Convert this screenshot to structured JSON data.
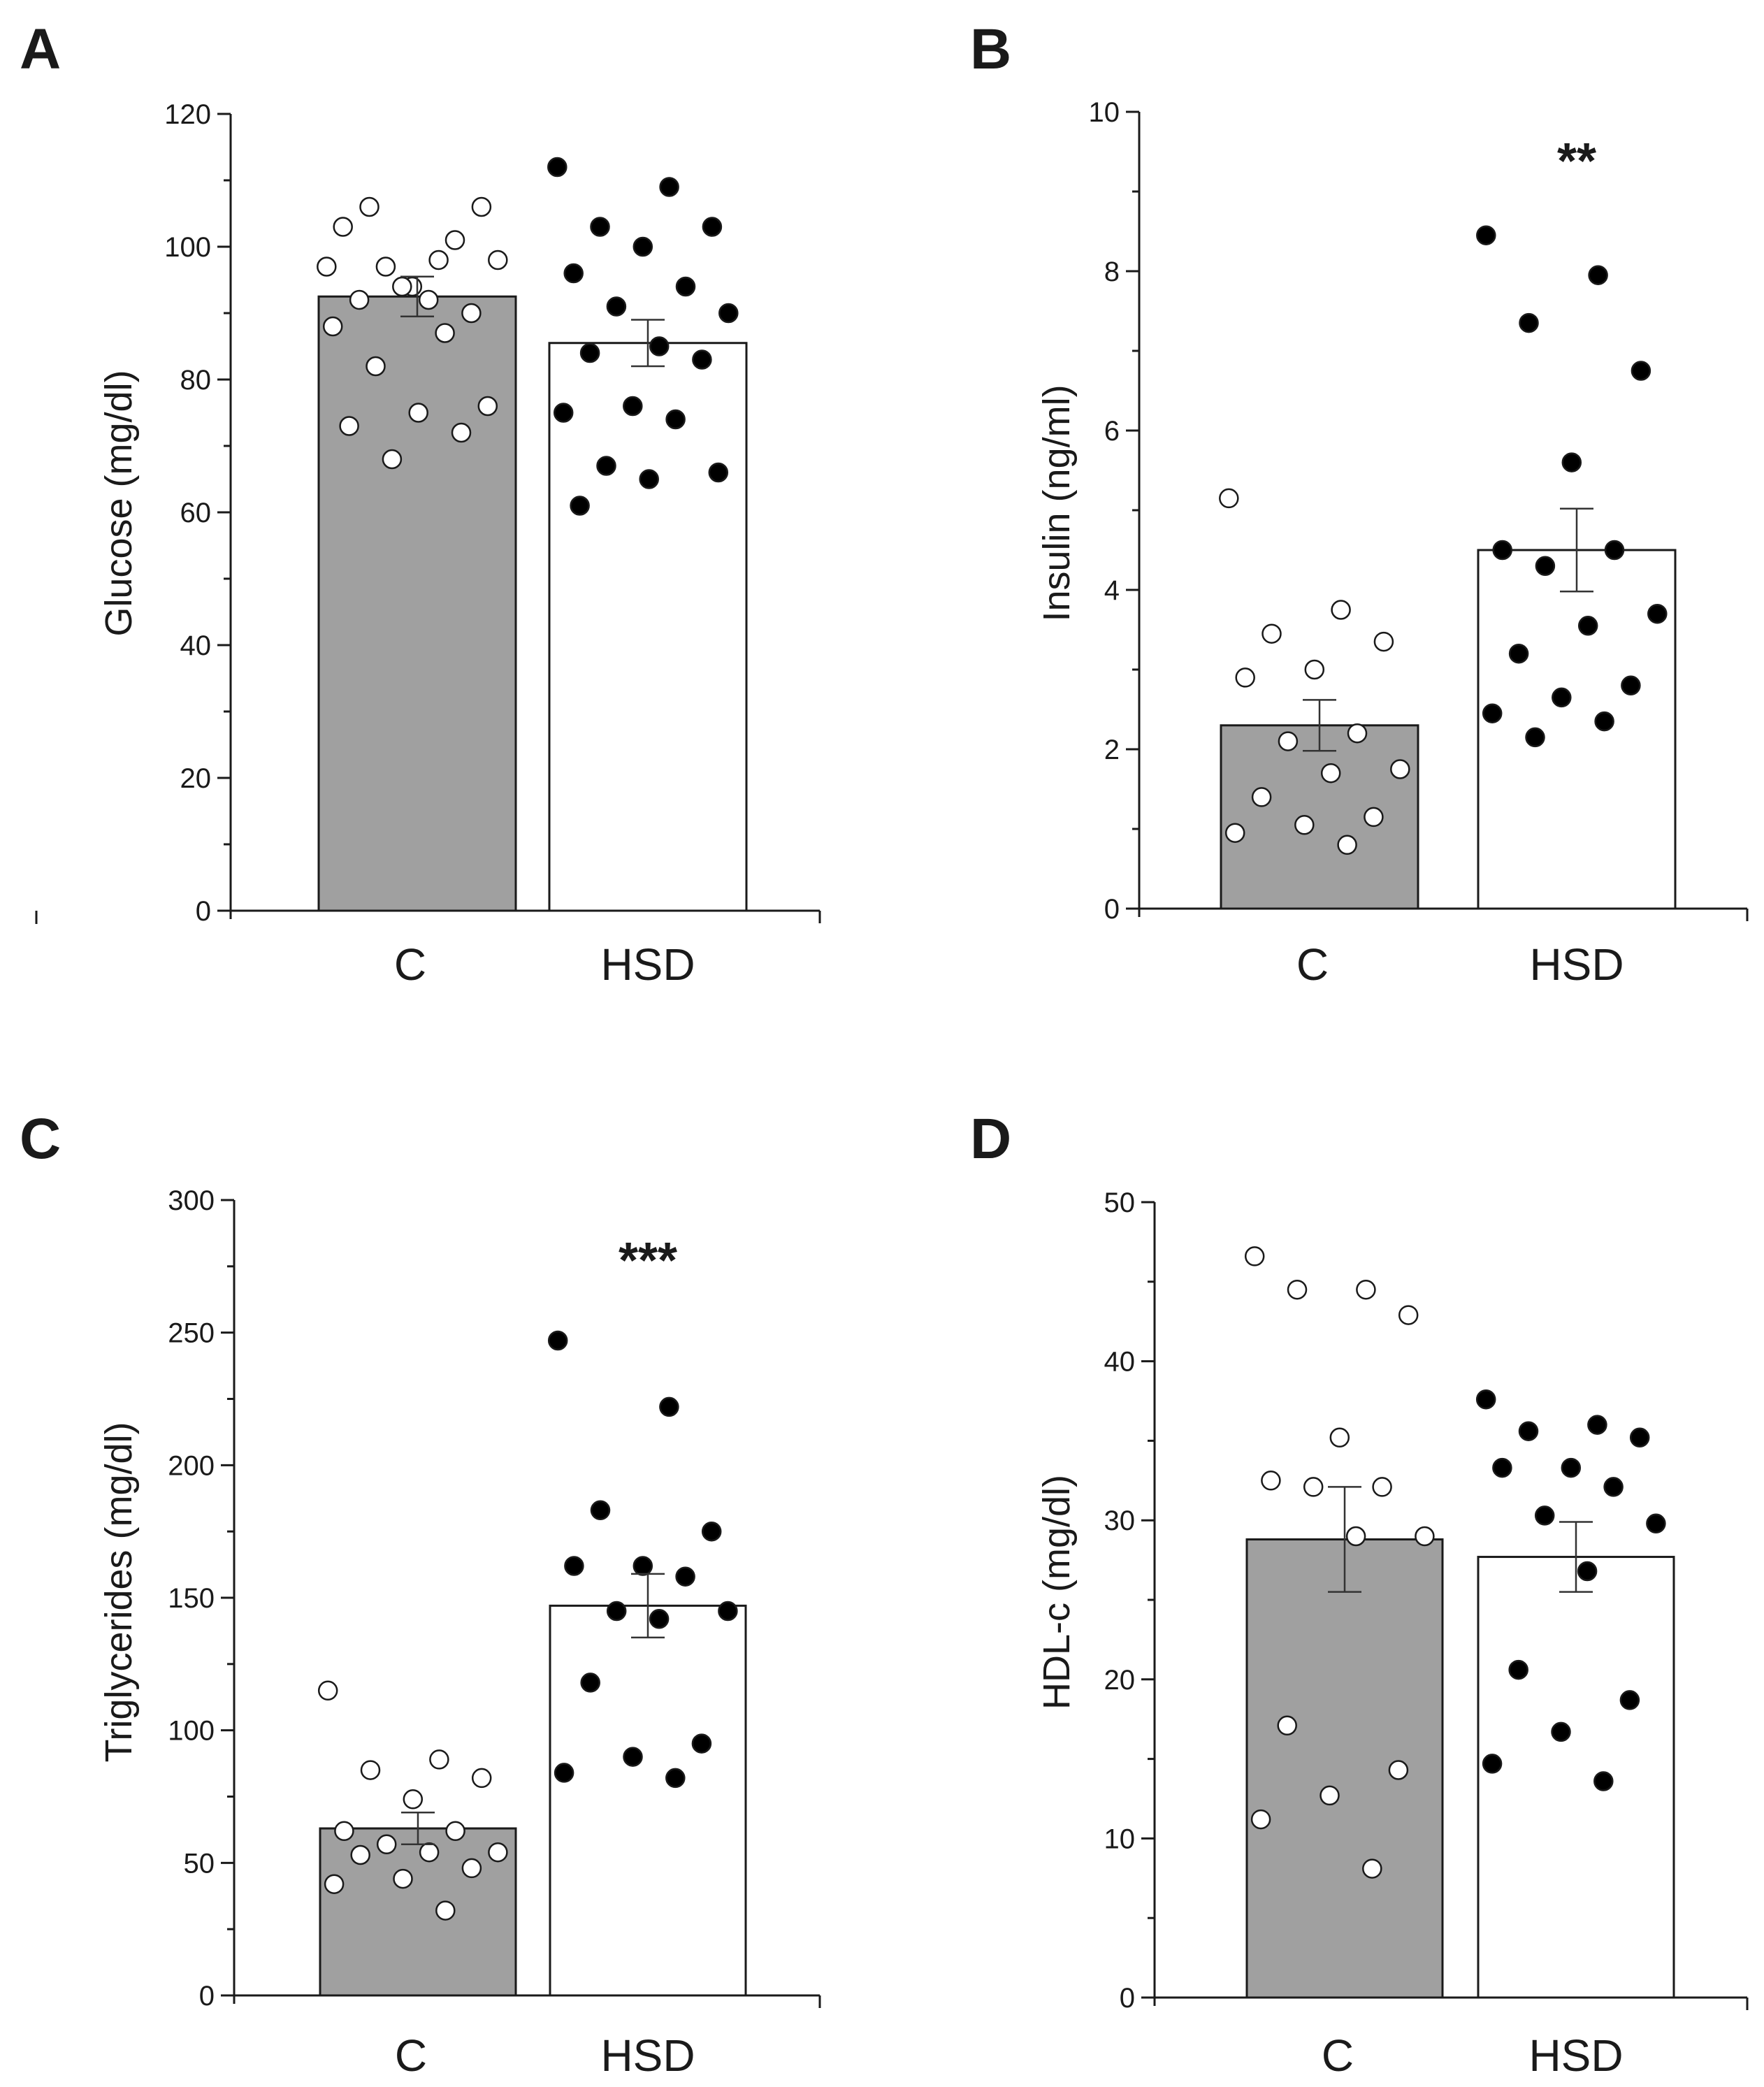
{
  "colors": {
    "control_bar": "#a0a0a0",
    "hsd_bar": "#ffffff",
    "axis": "#1a1a1a",
    "control_point": "#ffffff",
    "hsd_point": "#000000"
  },
  "chart_data": [
    {
      "panel": "A",
      "type": "bar",
      "ylabel": "Glucose (mg/dl)",
      "ylim": [
        0,
        120
      ],
      "yticks": [
        0,
        20,
        40,
        60,
        80,
        100,
        120
      ],
      "categories": [
        "C",
        "HSD"
      ],
      "values": [
        92.5,
        85.5
      ],
      "errors": [
        3.0,
        3.5
      ],
      "significance": "",
      "points": [
        [
          97,
          98,
          106,
          106,
          94,
          103,
          101,
          97,
          98,
          92,
          92,
          90,
          94,
          88,
          87,
          82,
          76,
          75,
          73,
          72,
          68
        ],
        [
          112,
          109,
          103,
          103,
          100,
          96,
          94,
          91,
          90,
          85,
          84,
          83,
          76,
          75,
          74,
          67,
          66,
          65,
          61
        ]
      ]
    },
    {
      "panel": "B",
      "type": "bar",
      "ylabel": "Insulin (ng/ml)",
      "ylim": [
        0,
        10
      ],
      "yticks": [
        0,
        2,
        4,
        6,
        8,
        10
      ],
      "categories": [
        "C",
        "HSD"
      ],
      "values": [
        2.3,
        4.5
      ],
      "errors": [
        0.32,
        0.52
      ],
      "significance": "**",
      "points": [
        [
          5.15,
          3.75,
          3.45,
          3.35,
          3.0,
          2.9,
          2.2,
          2.1,
          1.75,
          1.7,
          1.4,
          1.15,
          1.05,
          0.95,
          0.8
        ],
        [
          8.45,
          7.95,
          7.35,
          6.75,
          5.6,
          4.5,
          4.5,
          4.3,
          3.7,
          3.55,
          3.2,
          2.8,
          2.65,
          2.45,
          2.35,
          2.15
        ]
      ]
    },
    {
      "panel": "C",
      "type": "bar",
      "ylabel": "Triglycerides (mg/dl)",
      "ylim": [
        0,
        300
      ],
      "yticks": [
        0,
        50,
        100,
        150,
        200,
        250,
        300
      ],
      "categories": [
        "C",
        "HSD"
      ],
      "values": [
        63,
        147
      ],
      "errors": [
        6,
        12
      ],
      "significance": "***",
      "points": [
        [
          115,
          89,
          85,
          82,
          74,
          62,
          62,
          57,
          54,
          54,
          53,
          48,
          44,
          42,
          32
        ],
        [
          247,
          222,
          183,
          175,
          162,
          162,
          158,
          145,
          145,
          142,
          118,
          95,
          90,
          84,
          82
        ]
      ]
    },
    {
      "panel": "D",
      "type": "bar",
      "ylabel": "HDL-c (mg/dl)",
      "ylim": [
        0,
        50
      ],
      "yticks": [
        0,
        10,
        20,
        30,
        40,
        50
      ],
      "categories": [
        "C",
        "HSD"
      ],
      "values": [
        28.8,
        27.7
      ],
      "errors": [
        3.3,
        2.2
      ],
      "significance": "",
      "points": [
        [
          46.6,
          44.5,
          44.5,
          42.9,
          35.2,
          32.5,
          32.1,
          32.1,
          29.0,
          29.0,
          17.1,
          14.3,
          12.7,
          11.2,
          8.1
        ],
        [
          37.6,
          36.0,
          35.6,
          35.2,
          33.3,
          33.3,
          32.1,
          30.3,
          29.8,
          26.8,
          20.6,
          18.7,
          16.7,
          14.7,
          13.6
        ]
      ]
    }
  ]
}
